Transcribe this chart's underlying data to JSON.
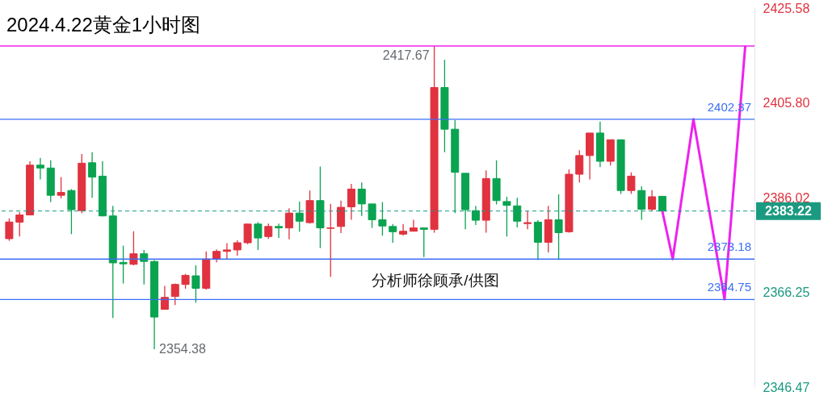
{
  "chart_data": {
    "type": "candlestick",
    "title": "2024.4.22黄金1小时图",
    "categories": [
      null,
      null,
      null,
      null,
      null,
      null,
      null,
      null,
      null,
      null,
      null,
      null,
      null,
      null,
      null,
      null,
      null,
      null,
      null,
      null,
      null,
      null,
      null,
      null,
      null,
      null,
      null,
      null,
      null,
      null,
      null,
      null,
      null,
      null,
      null,
      null,
      null,
      null,
      null,
      null,
      null,
      null,
      null,
      null,
      null,
      null,
      null,
      null,
      null,
      null,
      null,
      null,
      null,
      null,
      null,
      null,
      null,
      null,
      null,
      null,
      null,
      null,
      null,
      null,
      null,
      null,
      null,
      null,
      null,
      null,
      null,
      null
    ],
    "ohlc": [
      [
        2377.45,
        2381.7,
        2377.0,
        2380.94
      ],
      [
        2380.9,
        2383.0,
        2377.9,
        2382.4
      ],
      [
        2382.4,
        2393.6,
        2382.4,
        2392.8
      ],
      [
        2392.8,
        2394.3,
        2389.8,
        2392.2
      ],
      [
        2392.2,
        2393.8,
        2385.1,
        2386.5
      ],
      [
        2386.5,
        2390.3,
        2385.9,
        2387.1
      ],
      [
        2387.5,
        2387.8,
        2378.4,
        2383.5
      ],
      [
        2383.3,
        2395.1,
        2382.8,
        2393.2
      ],
      [
        2393.3,
        2395.5,
        2386.0,
        2390.3
      ],
      [
        2390.5,
        2393.6,
        2382.1,
        2382.2
      ],
      [
        2382.2,
        2384.3,
        2360.9,
        2372.4
      ],
      [
        2372.5,
        2376.0,
        2368.1,
        2372.2
      ],
      [
        2372.1,
        2379.0,
        2371.9,
        2374.3
      ],
      [
        2374.3,
        2375.1,
        2367.9,
        2372.7
      ],
      [
        2372.7,
        2373.0,
        2354.38,
        2361.1
      ],
      [
        2362.7,
        2367.6,
        2362.7,
        2365.2
      ],
      [
        2365.4,
        2368.1,
        2363.6,
        2367.9
      ],
      [
        2367.9,
        2370.1,
        2367.0,
        2369.8
      ],
      [
        2369.7,
        2371.9,
        2364.1,
        2367.1
      ],
      [
        2367.1,
        2374.8,
        2366.8,
        2373.2
      ],
      [
        2373.2,
        2375.2,
        2372.5,
        2374.8
      ],
      [
        2374.8,
        2376.5,
        2373.2,
        2375.1
      ],
      [
        2375.1,
        2377.1,
        2373.9,
        2376.6
      ],
      [
        2376.6,
        2380.6,
        2376.3,
        2380.5
      ],
      [
        2380.5,
        2380.9,
        2375.1,
        2377.6
      ],
      [
        2377.9,
        2380.6,
        2377.4,
        2380.0
      ],
      [
        2380.0,
        2380.6,
        2377.6,
        2379.7
      ],
      [
        2379.7,
        2383.8,
        2377.3,
        2382.8
      ],
      [
        2382.8,
        2385.2,
        2378.9,
        2381.1
      ],
      [
        2380.8,
        2387.5,
        2380.6,
        2385.4
      ],
      [
        2385.4,
        2392.5,
        2375.5,
        2379.7
      ],
      [
        2379.6,
        2384.7,
        2369.5,
        2379.7
      ],
      [
        2380.0,
        2385.4,
        2378.6,
        2384.0
      ],
      [
        2384.1,
        2388.9,
        2381.4,
        2387.8
      ],
      [
        2387.8,
        2389.2,
        2382.2,
        2384.7
      ],
      [
        2384.7,
        2384.7,
        2379.7,
        2381.4
      ],
      [
        2381.4,
        2385.1,
        2378.1,
        2380.1
      ],
      [
        2380.0,
        2380.5,
        2376.6,
        2378.9
      ],
      [
        2378.4,
        2380.5,
        2378.1,
        2379.0
      ],
      [
        2379.0,
        2381.4,
        2379.0,
        2379.7
      ],
      [
        2379.7,
        2379.7,
        2373.6,
        2379.4
      ],
      [
        2379.4,
        2417.67,
        2378.7,
        2409.0
      ],
      [
        2409.0,
        2414.8,
        2395.5,
        2400.3
      ],
      [
        2400.3,
        2402.2,
        2382.8,
        2391.3
      ],
      [
        2391.1,
        2391.1,
        2379.4,
        2383.5
      ],
      [
        2383.3,
        2384.3,
        2380.3,
        2381.3
      ],
      [
        2381.3,
        2391.7,
        2378.7,
        2390.0
      ],
      [
        2390.0,
        2393.8,
        2384.6,
        2385.4
      ],
      [
        2385.2,
        2386.2,
        2377.9,
        2384.4
      ],
      [
        2384.3,
        2386.0,
        2379.8,
        2381.1
      ],
      [
        2380.6,
        2383.2,
        2379.4,
        2380.8
      ],
      [
        2380.9,
        2381.3,
        2373.0,
        2376.7
      ],
      [
        2376.7,
        2384.3,
        2374.6,
        2381.4
      ],
      [
        2381.4,
        2386.7,
        2373.0,
        2378.7
      ],
      [
        2378.9,
        2391.9,
        2378.7,
        2390.9
      ],
      [
        2390.9,
        2395.9,
        2389.2,
        2394.8
      ],
      [
        2394.8,
        2399.5,
        2389.8,
        2399.5
      ],
      [
        2399.5,
        2401.9,
        2392.4,
        2393.6
      ],
      [
        2393.6,
        2398.1,
        2392.7,
        2398.1
      ],
      [
        2398.1,
        2398.1,
        2386.8,
        2387.5
      ],
      [
        2387.5,
        2391.3,
        2386.8,
        2390.5
      ],
      [
        2387.5,
        2388.4,
        2381.4,
        2383.6
      ],
      [
        2383.6,
        2387.6,
        2383.2,
        2386.2
      ],
      [
        2386.3,
        2386.3,
        2383.22,
        2383.22
      ],
      null,
      null,
      null,
      null,
      null,
      null,
      null,
      null
    ],
    "series": [
      {
        "type": "line",
        "color": "#ee22ee",
        "values": [
          null,
          null,
          null,
          null,
          null,
          null,
          null,
          null,
          null,
          null,
          null,
          null,
          null,
          null,
          null,
          null,
          null,
          null,
          null,
          null,
          null,
          null,
          null,
          null,
          null,
          null,
          null,
          null,
          null,
          null,
          null,
          null,
          null,
          null,
          null,
          null,
          null,
          null,
          null,
          null,
          null,
          null,
          null,
          null,
          null,
          null,
          null,
          null,
          null,
          null,
          null,
          null,
          null,
          null,
          null,
          null,
          null,
          null,
          null,
          null,
          null,
          null,
          null,
          2383.2,
          2373.2,
          null,
          2402.4,
          null,
          null,
          2364.8,
          null,
          2417.7
        ]
      }
    ],
    "ylim": [
      2346.47,
      2425.58
    ],
    "yticks": [
      2346.47,
      2366.25,
      2386.02,
      {
        "value": 2405.8,
        "label": "2405.80"
      },
      2425.58
    ],
    "ref_lines": [
      {
        "axis": "y",
        "value": 2417.67,
        "color": "#ee22ee"
      },
      {
        "axis": "y",
        "value": 2402.37,
        "label": "2402.37",
        "color": "#3b6ef5"
      },
      {
        "axis": "y",
        "value": 2373.18,
        "label": "2373.18",
        "color": "#3b6ef5"
      },
      {
        "axis": "y",
        "value": 2364.75,
        "label": "2364.75",
        "color": "#3b6ef5"
      },
      {
        "axis": "y",
        "value": 2383.22,
        "label": "2383.22",
        "color": "#1a9a80",
        "line_style": "dashed"
      }
    ],
    "annotations": [
      {
        "text": "2417.67",
        "y": 2417.67
      },
      "分析师徐顾承/供图",
      "2354.38"
    ]
  }
}
